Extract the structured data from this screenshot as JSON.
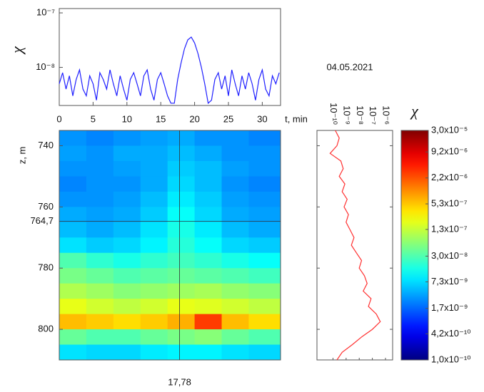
{
  "chart_data": [
    {
      "type": "line",
      "ylabel": "χ",
      "xlabel": "t, min",
      "annotation": "04.05.2021",
      "color": "#2020ff",
      "ylog": true,
      "xlim": [
        0,
        32.7
      ],
      "xticks": [
        0,
        5,
        10,
        15,
        20,
        25,
        30
      ],
      "ylim": [
        2e-09,
        1.2e-07
      ],
      "yticks": [
        {
          "value": 1e-07,
          "label": "10⁻⁷"
        },
        {
          "value": 1e-08,
          "label": "10⁻⁸"
        }
      ],
      "x": [
        0,
        0.5,
        1,
        1.5,
        2,
        2.5,
        3,
        3.5,
        4,
        4.5,
        5,
        5.5,
        6,
        6.5,
        7,
        7.5,
        8,
        8.5,
        9,
        9.5,
        10,
        10.5,
        11,
        11.5,
        12,
        12.5,
        13,
        13.5,
        14,
        14.5,
        15,
        15.5,
        16,
        16.5,
        17,
        17.5,
        18,
        18.5,
        19,
        19.5,
        20,
        20.5,
        21,
        21.5,
        22,
        22.5,
        23,
        23.5,
        24,
        24.5,
        25,
        25.5,
        26,
        26.5,
        27,
        27.5,
        28,
        28.5,
        29,
        29.5,
        30,
        30.5,
        31,
        31.5,
        32,
        32.5
      ],
      "values": [
        5e-09,
        8e-09,
        4e-09,
        7e-09,
        3e-09,
        6e-09,
        9e-09,
        4e-09,
        3e-09,
        7e-09,
        5e-09,
        2.5e-09,
        8e-09,
        6e-09,
        4e-09,
        9e-09,
        5e-09,
        3e-09,
        7e-09,
        4e-09,
        2.5e-09,
        6e-09,
        8e-09,
        5e-09,
        3e-09,
        7e-09,
        9e-09,
        4e-09,
        2.5e-09,
        6e-09,
        8e-09,
        5e-09,
        3e-09,
        2.2e-09,
        2.2e-09,
        6e-09,
        1.2e-08,
        2.2e-08,
        3.2e-08,
        3.6e-08,
        2.8e-08,
        1.8e-08,
        1e-08,
        5e-09,
        2.2e-09,
        2.5e-09,
        6e-09,
        8e-09,
        4e-09,
        7e-09,
        3e-09,
        9e-09,
        5e-09,
        3e-09,
        7e-09,
        4e-09,
        8e-09,
        5e-09,
        2.5e-09,
        6e-09,
        9e-09,
        4e-09,
        3e-09,
        7e-09,
        5e-09,
        8e-09
      ]
    },
    {
      "type": "heatmap",
      "ylabel": "z, m",
      "xlim": [
        0,
        32.7
      ],
      "ylim": [
        735,
        810
      ],
      "yticks": [
        740,
        760,
        780,
        800
      ],
      "marker_x": {
        "value": 17.78,
        "label": "17,78"
      },
      "marker_y": {
        "value": 764.7,
        "label": "764,7"
      },
      "x": [
        0,
        4,
        8,
        12,
        16,
        20,
        24,
        28
      ],
      "y": [
        735,
        740,
        745,
        750,
        755,
        760,
        765,
        770,
        775,
        780,
        785,
        790,
        795,
        800,
        805
      ],
      "values": [
        [
          3e-09,
          2.5e-09,
          3e-09,
          3.5e-09,
          4e-09,
          3e-09,
          3e-09,
          2.5e-09
        ],
        [
          3.5e-09,
          3e-09,
          4e-09,
          4e-09,
          5e-09,
          4e-09,
          3e-09,
          3e-09
        ],
        [
          3e-09,
          3e-09,
          3.5e-09,
          4e-09,
          6e-09,
          5e-09,
          3.5e-09,
          3e-09
        ],
        [
          2.5e-09,
          3e-09,
          3e-09,
          4e-09,
          7e-09,
          5e-09,
          3e-09,
          2.5e-09
        ],
        [
          3e-09,
          3e-09,
          3.5e-09,
          5e-09,
          9e-09,
          6e-09,
          3.5e-09,
          3e-09
        ],
        [
          4e-09,
          3.5e-09,
          4e-09,
          6e-09,
          1.2e-08,
          7e-09,
          4e-09,
          3.5e-09
        ],
        [
          5e-09,
          4e-09,
          5e-09,
          8e-09,
          1.5e-08,
          9e-09,
          5e-09,
          4e-09
        ],
        [
          8e-09,
          6e-09,
          7e-09,
          1e-08,
          1.8e-08,
          1.2e-08,
          7e-09,
          6e-09
        ],
        [
          3e-08,
          2e-08,
          1.5e-08,
          2e-08,
          2.5e-08,
          2e-08,
          1.5e-08,
          1.2e-08
        ],
        [
          5e-08,
          4e-08,
          3e-08,
          3.5e-08,
          4e-08,
          3.5e-08,
          3e-08,
          2.5e-08
        ],
        [
          1e-07,
          8e-08,
          6e-08,
          7e-08,
          8e-08,
          9e-08,
          7e-08,
          6e-08
        ],
        [
          2e-07,
          1.5e-07,
          1.2e-07,
          1.5e-07,
          2e-07,
          1.8e-07,
          1.5e-07,
          1.2e-07
        ],
        [
          6e-07,
          5e-07,
          4e-07,
          5e-07,
          7e-07,
          3e-06,
          6e-07,
          4e-07
        ],
        [
          4e-08,
          3e-08,
          3e-08,
          4e-08,
          5e-08,
          6e-08,
          4e-08,
          3e-08
        ],
        [
          8e-09,
          7e-09,
          7e-09,
          9e-09,
          1e-08,
          1e-08,
          8e-09,
          7e-09
        ]
      ],
      "colorbar": {
        "title": "χ",
        "log": true,
        "lim": [
          1e-10,
          3e-05
        ],
        "ticks": [
          {
            "value": 3e-05,
            "label": "3,0x10⁻⁵"
          },
          {
            "value": 9.2e-06,
            "label": "9,2x10⁻⁶"
          },
          {
            "value": 2.2e-06,
            "label": "2,2x10⁻⁶"
          },
          {
            "value": 5.3e-07,
            "label": "5,3x10⁻⁷"
          },
          {
            "value": 1.3e-07,
            "label": "1,3x10⁻⁷"
          },
          {
            "value": 3e-08,
            "label": "3,0x10⁻⁸"
          },
          {
            "value": 7.3e-09,
            "label": "7,3x10⁻⁹"
          },
          {
            "value": 1.7e-09,
            "label": "1,7x10⁻⁹"
          },
          {
            "value": 4.2e-10,
            "label": "4,2x10⁻¹⁰"
          },
          {
            "value": 1e-10,
            "label": "1,0x10⁻¹⁰"
          }
        ]
      }
    },
    {
      "type": "profile",
      "color": "#ff3030",
      "xlog": true,
      "xlim": [
        6e-12,
        3.5e-06
      ],
      "xticks": [
        {
          "value": 1e-10,
          "label": "10⁻¹⁰"
        },
        {
          "value": 1e-09,
          "label": "10⁻⁹"
        },
        {
          "value": 1e-08,
          "label": "10⁻⁸"
        },
        {
          "value": 1e-07,
          "label": "10⁻⁷"
        },
        {
          "value": 1e-06,
          "label": "10⁻⁶"
        }
      ],
      "ylim": [
        735,
        810
      ],
      "yticks": [
        740,
        760,
        780,
        800
      ],
      "y": [
        735,
        737.5,
        740,
        742.5,
        745,
        747.5,
        750,
        752.5,
        755,
        757.5,
        760,
        762.5,
        765,
        767.5,
        770,
        772.5,
        775,
        777.5,
        780,
        782.5,
        785,
        787.5,
        790,
        792.5,
        795,
        797.5,
        800,
        802.5,
        805,
        807.5,
        810
      ],
      "values": [
        1.5e-10,
        3e-10,
        2e-10,
        6e-11,
        4e-10,
        6e-10,
        3e-10,
        8e-10,
        5e-10,
        1.2e-09,
        7e-10,
        1.5e-09,
        1e-09,
        2e-09,
        4e-09,
        2.5e-09,
        6e-09,
        1.5e-08,
        1e-08,
        2.5e-08,
        4e-08,
        2e-08,
        8e-08,
        5e-08,
        2e-07,
        4e-07,
        1e-07,
        1.5e-08,
        3e-09,
        5e-10,
        2e-10
      ]
    }
  ]
}
